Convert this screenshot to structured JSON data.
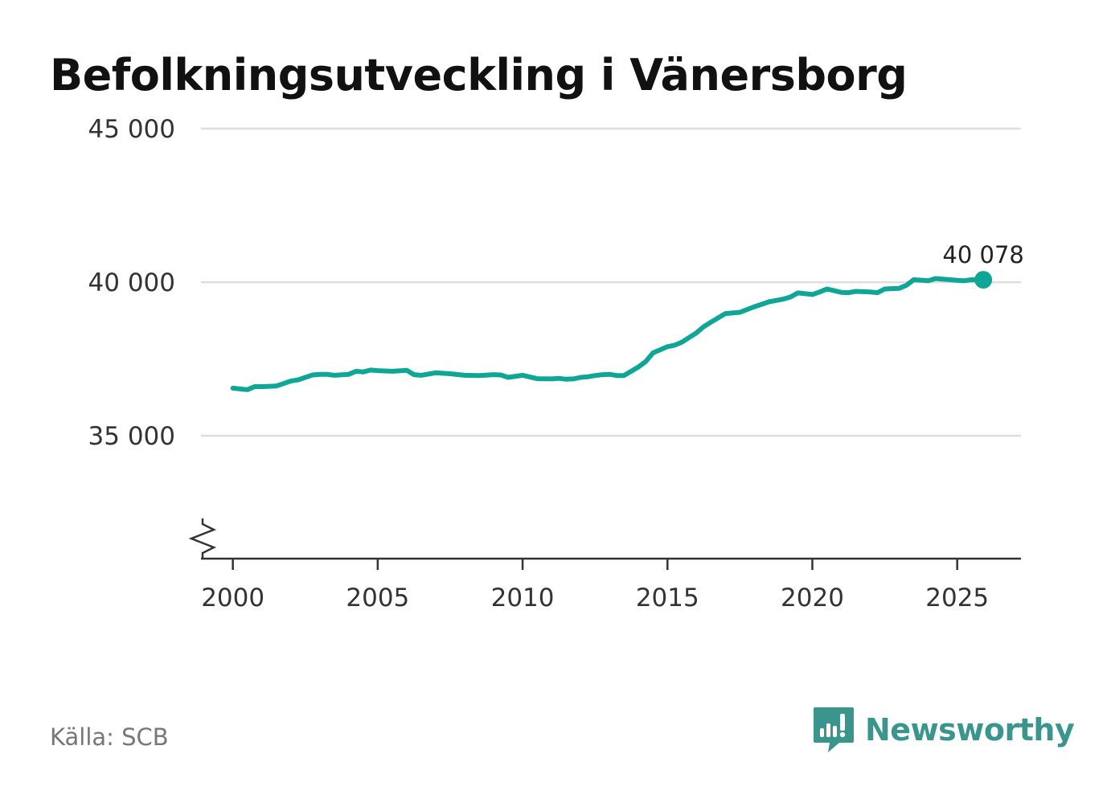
{
  "title": "Befolkningsutveckling i Vänersborg",
  "source": "Källa: SCB",
  "brand": {
    "name": "Newsworthy",
    "logo_icon": "newsworthy-logo-icon",
    "color": "#3a968d"
  },
  "colors": {
    "line": "#0fa597",
    "grid": "#dddddd",
    "axis": "#333333"
  },
  "chart_data": {
    "type": "line",
    "title": "Befolkningsutveckling i Vänersborg",
    "xlabel": "",
    "ylabel": "",
    "xlim": [
      1998.9,
      2027.2
    ],
    "ylim": [
      31000,
      45000
    ],
    "axis_break": true,
    "grid": true,
    "x_ticks": [
      2000,
      2005,
      2010,
      2015,
      2020,
      2025
    ],
    "x_tick_labels": [
      "2000",
      "2005",
      "2010",
      "2015",
      "2020",
      "2025"
    ],
    "y_ticks": [
      35000,
      40000,
      45000
    ],
    "y_tick_labels": [
      "35 000",
      "40 000",
      "45 000"
    ],
    "last_value_label": "40 078",
    "series": [
      {
        "name": "Vänersborg",
        "x": [
          2000.0,
          2000.5,
          2000.75,
          2001.0,
          2001.5,
          2001.75,
          2002.0,
          2002.25,
          2002.5,
          2002.75,
          2003.0,
          2003.25,
          2003.5,
          2004.0,
          2004.25,
          2004.5,
          2004.75,
          2005.0,
          2005.5,
          2006.0,
          2006.25,
          2006.5,
          2007.0,
          2007.5,
          2008.0,
          2008.5,
          2009.0,
          2009.25,
          2009.5,
          2010.0,
          2010.5,
          2011.0,
          2011.25,
          2011.5,
          2011.75,
          2012.0,
          2012.25,
          2012.5,
          2012.75,
          2013.0,
          2013.25,
          2013.5,
          2014.0,
          2014.25,
          2014.5,
          2015.0,
          2015.25,
          2015.5,
          2016.0,
          2016.25,
          2016.5,
          2017.0,
          2017.5,
          2018.0,
          2018.25,
          2018.5,
          2019.0,
          2019.25,
          2019.5,
          2020.0,
          2020.25,
          2020.5,
          2021.0,
          2021.25,
          2021.5,
          2022.0,
          2022.25,
          2022.5,
          2023.0,
          2023.25,
          2023.5,
          2024.0,
          2024.25,
          2024.5,
          2025.0,
          2025.25,
          2025.5,
          2025.9
        ],
        "values": [
          36550,
          36500,
          36600,
          36600,
          36620,
          36700,
          36780,
          36820,
          36900,
          36980,
          37000,
          37000,
          36970,
          37000,
          37100,
          37080,
          37140,
          37120,
          37100,
          37130,
          36990,
          36970,
          37050,
          37020,
          36970,
          36960,
          36990,
          36980,
          36900,
          36970,
          36860,
          36850,
          36870,
          36840,
          36850,
          36900,
          36920,
          36960,
          36990,
          37000,
          36960,
          36960,
          37240,
          37420,
          37700,
          37900,
          37950,
          38050,
          38350,
          38550,
          38700,
          38980,
          39020,
          39200,
          39280,
          39360,
          39450,
          39520,
          39650,
          39600,
          39680,
          39780,
          39670,
          39660,
          39700,
          39680,
          39660,
          39780,
          39800,
          39900,
          40080,
          40050,
          40120,
          40100,
          40060,
          40050,
          40080,
          40078
        ]
      }
    ]
  }
}
